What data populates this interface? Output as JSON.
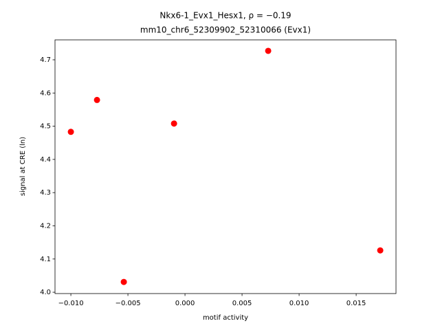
{
  "chart_data": {
    "type": "scatter",
    "title": "Nkx6-1_Evx1_Hesx1, ρ = −0.19",
    "subtitle": "mm10_chr6_52309902_52310066 (Evx1)",
    "x_label": "motif activity",
    "y_label": "signal at CRE (ln)",
    "color": "#ff0000",
    "x": [
      -0.01,
      -0.00771,
      -0.00536,
      -0.00096,
      0.00729,
      0.01711
    ],
    "values": [
      4.483,
      4.579,
      4.031,
      4.508,
      4.727,
      4.126
    ],
    "xlim": [
      -0.01139,
      0.01849
    ],
    "ylim": [
      3.996,
      4.76
    ],
    "xticks": [
      {
        "value": -0.01,
        "label": "−0.010"
      },
      {
        "value": -0.005,
        "label": "−0.005"
      },
      {
        "value": 0,
        "label": "0.000"
      },
      0.005,
      {
        "value": 0.01,
        "label": "0.010"
      },
      0.015
    ],
    "yticks": [
      {
        "value": 4,
        "label": "4.0"
      },
      4.1,
      4.2,
      4.3,
      4.4,
      4.5,
      4.6,
      4.7
    ]
  }
}
